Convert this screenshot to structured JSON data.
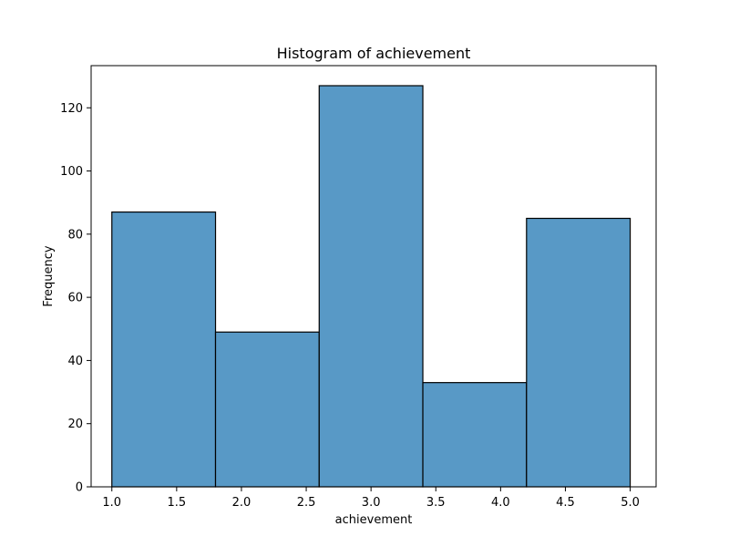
{
  "chart_data": {
    "type": "bar",
    "title": "Histogram of achievement",
    "xlabel": "achievement",
    "ylabel": "Frequency",
    "bins": [
      {
        "start": 1.0,
        "end": 1.8,
        "count": 87
      },
      {
        "start": 1.8,
        "end": 2.6,
        "count": 49
      },
      {
        "start": 2.6,
        "end": 3.4,
        "count": 127
      },
      {
        "start": 3.4,
        "end": 4.2,
        "count": 33
      },
      {
        "start": 4.2,
        "end": 5.0,
        "count": 85
      }
    ],
    "xlim": [
      0.84,
      5.2
    ],
    "ylim": [
      0,
      133.35
    ],
    "xticks": [
      1.0,
      1.5,
      2.0,
      2.5,
      3.0,
      3.5,
      4.0,
      4.5,
      5.0
    ],
    "xtick_labels": [
      "1.0",
      "1.5",
      "2.0",
      "2.5",
      "3.0",
      "3.5",
      "4.0",
      "4.5",
      "5.0"
    ],
    "yticks": [
      0,
      20,
      40,
      60,
      80,
      100,
      120
    ],
    "ytick_labels": [
      "0",
      "20",
      "40",
      "60",
      "80",
      "100",
      "120"
    ],
    "grid": false,
    "colors": {
      "bar_fill": "#5899c6",
      "bar_edge": "#000000"
    }
  }
}
